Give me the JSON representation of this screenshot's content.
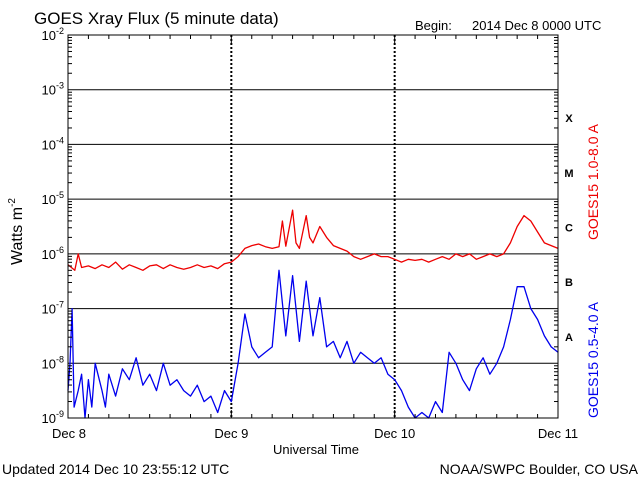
{
  "chart_data": {
    "type": "line",
    "title": "GOES Xray Flux (5 minute data)",
    "begin_label": "Begin:",
    "begin_value": "2014 Dec 8 0000 UTC",
    "xlabel": "Universal Time",
    "ylabel": "Watts m",
    "ylabel_sup": "-2",
    "yscale": "log",
    "ylim_exp": [
      -9,
      -2
    ],
    "xlim_hours": [
      0,
      72
    ],
    "x_ticks": [
      {
        "hour": 0,
        "label": "Dec 8"
      },
      {
        "hour": 24,
        "label": "Dec 9"
      },
      {
        "hour": 48,
        "label": "Dec 10"
      },
      {
        "hour": 72,
        "label": "Dec 11"
      }
    ],
    "y_ticks": [
      {
        "exp": -9,
        "base": "10",
        "sup": "-9"
      },
      {
        "exp": -8,
        "base": "10",
        "sup": "-8"
      },
      {
        "exp": -7,
        "base": "10",
        "sup": "-7"
      },
      {
        "exp": -6,
        "base": "10",
        "sup": "-6"
      },
      {
        "exp": -5,
        "base": "10",
        "sup": "-5"
      },
      {
        "exp": -4,
        "base": "10",
        "sup": "-4"
      },
      {
        "exp": -3,
        "base": "10",
        "sup": "-3"
      },
      {
        "exp": -2,
        "base": "10",
        "sup": "-2"
      }
    ],
    "flare_classes": [
      {
        "label": "X",
        "exp": -3.5
      },
      {
        "label": "M",
        "exp": -4.5
      },
      {
        "label": "C",
        "exp": -5.5
      },
      {
        "label": "B",
        "exp": -6.5
      },
      {
        "label": "A",
        "exp": -7.5
      }
    ],
    "series": [
      {
        "name": "GOES15 1.0-8.0 A",
        "color": "#ee0000",
        "points": [
          [
            0,
            -6.2
          ],
          [
            0.5,
            -6.25
          ],
          [
            1,
            -6.3
          ],
          [
            1.5,
            -6.0
          ],
          [
            2,
            -6.25
          ],
          [
            3,
            -6.22
          ],
          [
            4,
            -6.27
          ],
          [
            5,
            -6.2
          ],
          [
            6,
            -6.25
          ],
          [
            7,
            -6.15
          ],
          [
            8,
            -6.28
          ],
          [
            9,
            -6.2
          ],
          [
            10,
            -6.25
          ],
          [
            11,
            -6.3
          ],
          [
            12,
            -6.22
          ],
          [
            13,
            -6.2
          ],
          [
            14,
            -6.27
          ],
          [
            15,
            -6.2
          ],
          [
            16,
            -6.25
          ],
          [
            17,
            -6.28
          ],
          [
            18,
            -6.25
          ],
          [
            19,
            -6.2
          ],
          [
            20,
            -6.25
          ],
          [
            21,
            -6.22
          ],
          [
            22,
            -6.27
          ],
          [
            23,
            -6.18
          ],
          [
            24,
            -6.15
          ],
          [
            25,
            -6.05
          ],
          [
            26,
            -5.9
          ],
          [
            27,
            -5.85
          ],
          [
            28,
            -5.82
          ],
          [
            29,
            -5.87
          ],
          [
            30,
            -5.9
          ],
          [
            31,
            -5.87
          ],
          [
            31.5,
            -5.4
          ],
          [
            32,
            -5.86
          ],
          [
            33,
            -5.2
          ],
          [
            33.5,
            -5.8
          ],
          [
            34,
            -5.9
          ],
          [
            35,
            -5.3
          ],
          [
            35.5,
            -5.7
          ],
          [
            36,
            -5.8
          ],
          [
            37,
            -5.5
          ],
          [
            38,
            -5.7
          ],
          [
            39,
            -5.85
          ],
          [
            40,
            -5.9
          ],
          [
            41,
            -5.95
          ],
          [
            42,
            -6.05
          ],
          [
            43,
            -6.1
          ],
          [
            44,
            -6.05
          ],
          [
            45,
            -6.0
          ],
          [
            46,
            -6.05
          ],
          [
            47,
            -6.05
          ],
          [
            48,
            -6.1
          ],
          [
            49,
            -6.15
          ],
          [
            50,
            -6.1
          ],
          [
            51,
            -6.12
          ],
          [
            52,
            -6.1
          ],
          [
            53,
            -6.15
          ],
          [
            54,
            -6.1
          ],
          [
            55,
            -6.05
          ],
          [
            56,
            -6.1
          ],
          [
            57,
            -6.0
          ],
          [
            58,
            -6.05
          ],
          [
            59,
            -6.0
          ],
          [
            60,
            -6.1
          ],
          [
            61,
            -6.05
          ],
          [
            62,
            -6.0
          ],
          [
            63,
            -6.05
          ],
          [
            64,
            -6.0
          ],
          [
            65,
            -5.8
          ],
          [
            66,
            -5.5
          ],
          [
            67,
            -5.3
          ],
          [
            68,
            -5.4
          ],
          [
            69,
            -5.6
          ],
          [
            70,
            -5.8
          ],
          [
            71,
            -5.85
          ],
          [
            72,
            -5.9
          ]
        ]
      },
      {
        "name": "GOES15 0.5-4.0 A",
        "color": "#0000ee",
        "points": [
          [
            0,
            -8.5
          ],
          [
            0.3,
            -8.0
          ],
          [
            0.6,
            -7.0
          ],
          [
            0.9,
            -8.8
          ],
          [
            1.5,
            -8.5
          ],
          [
            2,
            -8.2
          ],
          [
            2.5,
            -9.0
          ],
          [
            3,
            -8.3
          ],
          [
            3.5,
            -8.8
          ],
          [
            4,
            -8.0
          ],
          [
            5,
            -8.5
          ],
          [
            5.5,
            -8.8
          ],
          [
            6,
            -8.2
          ],
          [
            7,
            -8.6
          ],
          [
            8,
            -8.1
          ],
          [
            9,
            -8.3
          ],
          [
            10,
            -7.9
          ],
          [
            11,
            -8.4
          ],
          [
            12,
            -8.2
          ],
          [
            13,
            -8.5
          ],
          [
            14,
            -8.0
          ],
          [
            15,
            -8.4
          ],
          [
            16,
            -8.3
          ],
          [
            17,
            -8.5
          ],
          [
            18,
            -8.6
          ],
          [
            19,
            -8.4
          ],
          [
            20,
            -8.7
          ],
          [
            21,
            -8.6
          ],
          [
            22,
            -8.9
          ],
          [
            23,
            -8.5
          ],
          [
            24,
            -8.7
          ],
          [
            25,
            -8.0
          ],
          [
            26,
            -7.1
          ],
          [
            27,
            -7.7
          ],
          [
            28,
            -7.9
          ],
          [
            29,
            -7.8
          ],
          [
            30,
            -7.7
          ],
          [
            31,
            -6.3
          ],
          [
            32,
            -7.5
          ],
          [
            33,
            -6.4
          ],
          [
            34,
            -7.6
          ],
          [
            35,
            -6.5
          ],
          [
            36,
            -7.5
          ],
          [
            37,
            -6.8
          ],
          [
            38,
            -7.7
          ],
          [
            39,
            -7.6
          ],
          [
            40,
            -7.9
          ],
          [
            41,
            -7.6
          ],
          [
            42,
            -8.0
          ],
          [
            43,
            -7.8
          ],
          [
            44,
            -7.9
          ],
          [
            45,
            -8.0
          ],
          [
            46,
            -7.9
          ],
          [
            47,
            -8.2
          ],
          [
            48,
            -8.3
          ],
          [
            49,
            -8.5
          ],
          [
            50,
            -8.8
          ],
          [
            51,
            -9.0
          ],
          [
            52,
            -8.9
          ],
          [
            53,
            -9.0
          ],
          [
            54,
            -8.7
          ],
          [
            55,
            -8.9
          ],
          [
            56,
            -7.8
          ],
          [
            57,
            -8.0
          ],
          [
            58,
            -8.3
          ],
          [
            59,
            -8.5
          ],
          [
            60,
            -8.1
          ],
          [
            61,
            -7.9
          ],
          [
            62,
            -8.2
          ],
          [
            63,
            -8.0
          ],
          [
            64,
            -7.7
          ],
          [
            65,
            -7.2
          ],
          [
            66,
            -6.6
          ],
          [
            67,
            -6.6
          ],
          [
            68,
            -7.0
          ],
          [
            69,
            -7.2
          ],
          [
            70,
            -7.5
          ],
          [
            71,
            -7.7
          ],
          [
            72,
            -7.8
          ]
        ]
      }
    ]
  },
  "footer": {
    "updated": "Updated 2014 Dec 10 23:55:12 UTC",
    "source": "NOAA/SWPC Boulder, CO USA"
  }
}
